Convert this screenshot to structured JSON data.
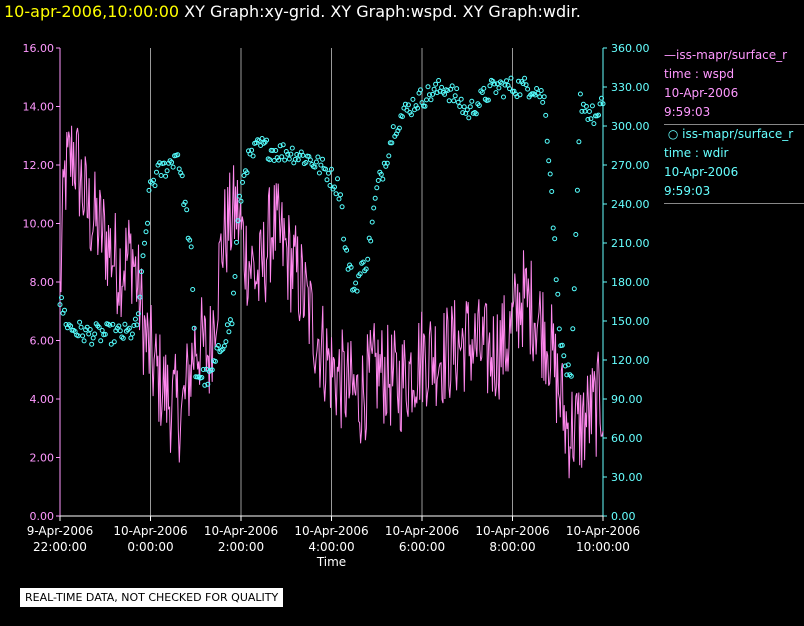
{
  "header": {
    "timestamp": "10-apr-2006,10:00:00",
    "rest": " XY Graph:xy-grid.  XY Graph:wspd.  XY Graph:wdir."
  },
  "legend": {
    "series1": {
      "name": "iss-mapr/surface_r",
      "line1": "time : wspd",
      "line2": "10-Apr-2006",
      "line3": "9:59:03"
    },
    "series2": {
      "name": "iss-mapr/surface_r",
      "line1": "time : wdir",
      "line2": "10-Apr-2006",
      "line3": "9:59:03"
    }
  },
  "notice": "REAL-TIME DATA, NOT CHECKED FOR QUALITY",
  "chart_data": {
    "type": "line",
    "xlabel": "Time",
    "x_ticks": [
      {
        "hour": 22,
        "l1": "9-Apr-2006",
        "l2": "22:00:00"
      },
      {
        "hour": 24,
        "l1": "10-Apr-2006",
        "l2": "0:00:00"
      },
      {
        "hour": 26,
        "l1": "10-Apr-2006",
        "l2": "2:00:00"
      },
      {
        "hour": 28,
        "l1": "10-Apr-2006",
        "l2": "4:00:00"
      },
      {
        "hour": 30,
        "l1": "10-Apr-2006",
        "l2": "6:00:00"
      },
      {
        "hour": 32,
        "l1": "10-Apr-2006",
        "l2": "8:00:00"
      },
      {
        "hour": 34,
        "l1": "10-Apr-2006",
        "l2": "10:00:00"
      }
    ],
    "xlim_hours": [
      22,
      34
    ],
    "left_axis": {
      "ylim": [
        0,
        16
      ],
      "ticks": [
        "0.00",
        "2.00",
        "4.00",
        "6.00",
        "8.00",
        "10.00",
        "12.00",
        "14.00",
        "16.00"
      ],
      "color": "#ff99ff"
    },
    "right_axis": {
      "ylim": [
        0,
        360
      ],
      "ticks": [
        "0.00",
        "30.00",
        "60.00",
        "90.00",
        "120.00",
        "150.00",
        "180.00",
        "210.00",
        "240.00",
        "270.00",
        "300.00",
        "330.00",
        "360.00"
      ],
      "color": "#66ffff"
    },
    "grid": "vertical",
    "series": [
      {
        "name": "time : wspd",
        "axis": "left",
        "color": "#ff88ee",
        "style": "line",
        "anchors": [
          [
            22.0,
            7.5
          ],
          [
            22.1,
            11.5
          ],
          [
            22.3,
            12.5
          ],
          [
            22.6,
            10.5
          ],
          [
            23.0,
            9.5
          ],
          [
            23.3,
            8.5
          ],
          [
            23.6,
            9.0
          ],
          [
            23.9,
            6.0
          ],
          [
            24.1,
            5.0
          ],
          [
            24.4,
            4.0
          ],
          [
            24.7,
            3.5
          ],
          [
            25.0,
            6.0
          ],
          [
            25.3,
            5.5
          ],
          [
            25.6,
            9.5
          ],
          [
            25.9,
            10.5
          ],
          [
            26.1,
            9.0
          ],
          [
            26.4,
            8.0
          ],
          [
            26.7,
            10.0
          ],
          [
            27.0,
            9.0
          ],
          [
            27.3,
            8.0
          ],
          [
            27.6,
            6.5
          ],
          [
            28.0,
            5.0
          ],
          [
            28.3,
            4.5
          ],
          [
            28.6,
            4.0
          ],
          [
            29.0,
            5.0
          ],
          [
            29.5,
            4.5
          ],
          [
            30.0,
            5.5
          ],
          [
            30.5,
            5.5
          ],
          [
            31.0,
            6.0
          ],
          [
            31.5,
            5.5
          ],
          [
            31.9,
            6.0
          ],
          [
            32.2,
            7.5
          ],
          [
            32.5,
            7.0
          ],
          [
            32.8,
            6.0
          ],
          [
            33.0,
            4.5
          ],
          [
            33.2,
            3.0
          ],
          [
            33.5,
            3.0
          ],
          [
            33.7,
            3.5
          ],
          [
            34.0,
            4.0
          ]
        ],
        "amplitude": 1.8
      },
      {
        "name": "time : wdir",
        "axis": "right",
        "color": "#55ffff",
        "style": "scatter",
        "anchors": [
          [
            22.0,
            165
          ],
          [
            22.2,
            145
          ],
          [
            22.6,
            140
          ],
          [
            22.9,
            140
          ],
          [
            23.2,
            140
          ],
          [
            23.5,
            140
          ],
          [
            23.7,
            145
          ],
          [
            23.85,
            200
          ],
          [
            24.0,
            255
          ],
          [
            24.2,
            265
          ],
          [
            24.4,
            270
          ],
          [
            24.6,
            280
          ],
          [
            24.8,
            230
          ],
          [
            24.9,
            200
          ],
          [
            25.0,
            110
          ],
          [
            25.3,
            105
          ],
          [
            25.6,
            135
          ],
          [
            25.8,
            150
          ],
          [
            25.95,
            235
          ],
          [
            26.1,
            270
          ],
          [
            26.4,
            285
          ],
          [
            26.8,
            280
          ],
          [
            27.1,
            280
          ],
          [
            27.5,
            275
          ],
          [
            27.9,
            265
          ],
          [
            28.2,
            250
          ],
          [
            28.3,
            205
          ],
          [
            28.5,
            175
          ],
          [
            28.8,
            200
          ],
          [
            29.0,
            250
          ],
          [
            29.2,
            275
          ],
          [
            29.4,
            300
          ],
          [
            29.6,
            310
          ],
          [
            29.9,
            320
          ],
          [
            30.2,
            325
          ],
          [
            30.5,
            330
          ],
          [
            30.8,
            320
          ],
          [
            31.0,
            310
          ],
          [
            31.3,
            320
          ],
          [
            31.6,
            330
          ],
          [
            31.9,
            330
          ],
          [
            32.2,
            330
          ],
          [
            32.5,
            330
          ],
          [
            32.7,
            320
          ],
          [
            32.85,
            260
          ],
          [
            33.0,
            165
          ],
          [
            33.1,
            125
          ],
          [
            33.3,
            100
          ],
          [
            33.5,
            320
          ],
          [
            33.7,
            310
          ],
          [
            33.9,
            305
          ],
          [
            34.0,
            320
          ]
        ],
        "jitter": 8
      }
    ]
  }
}
